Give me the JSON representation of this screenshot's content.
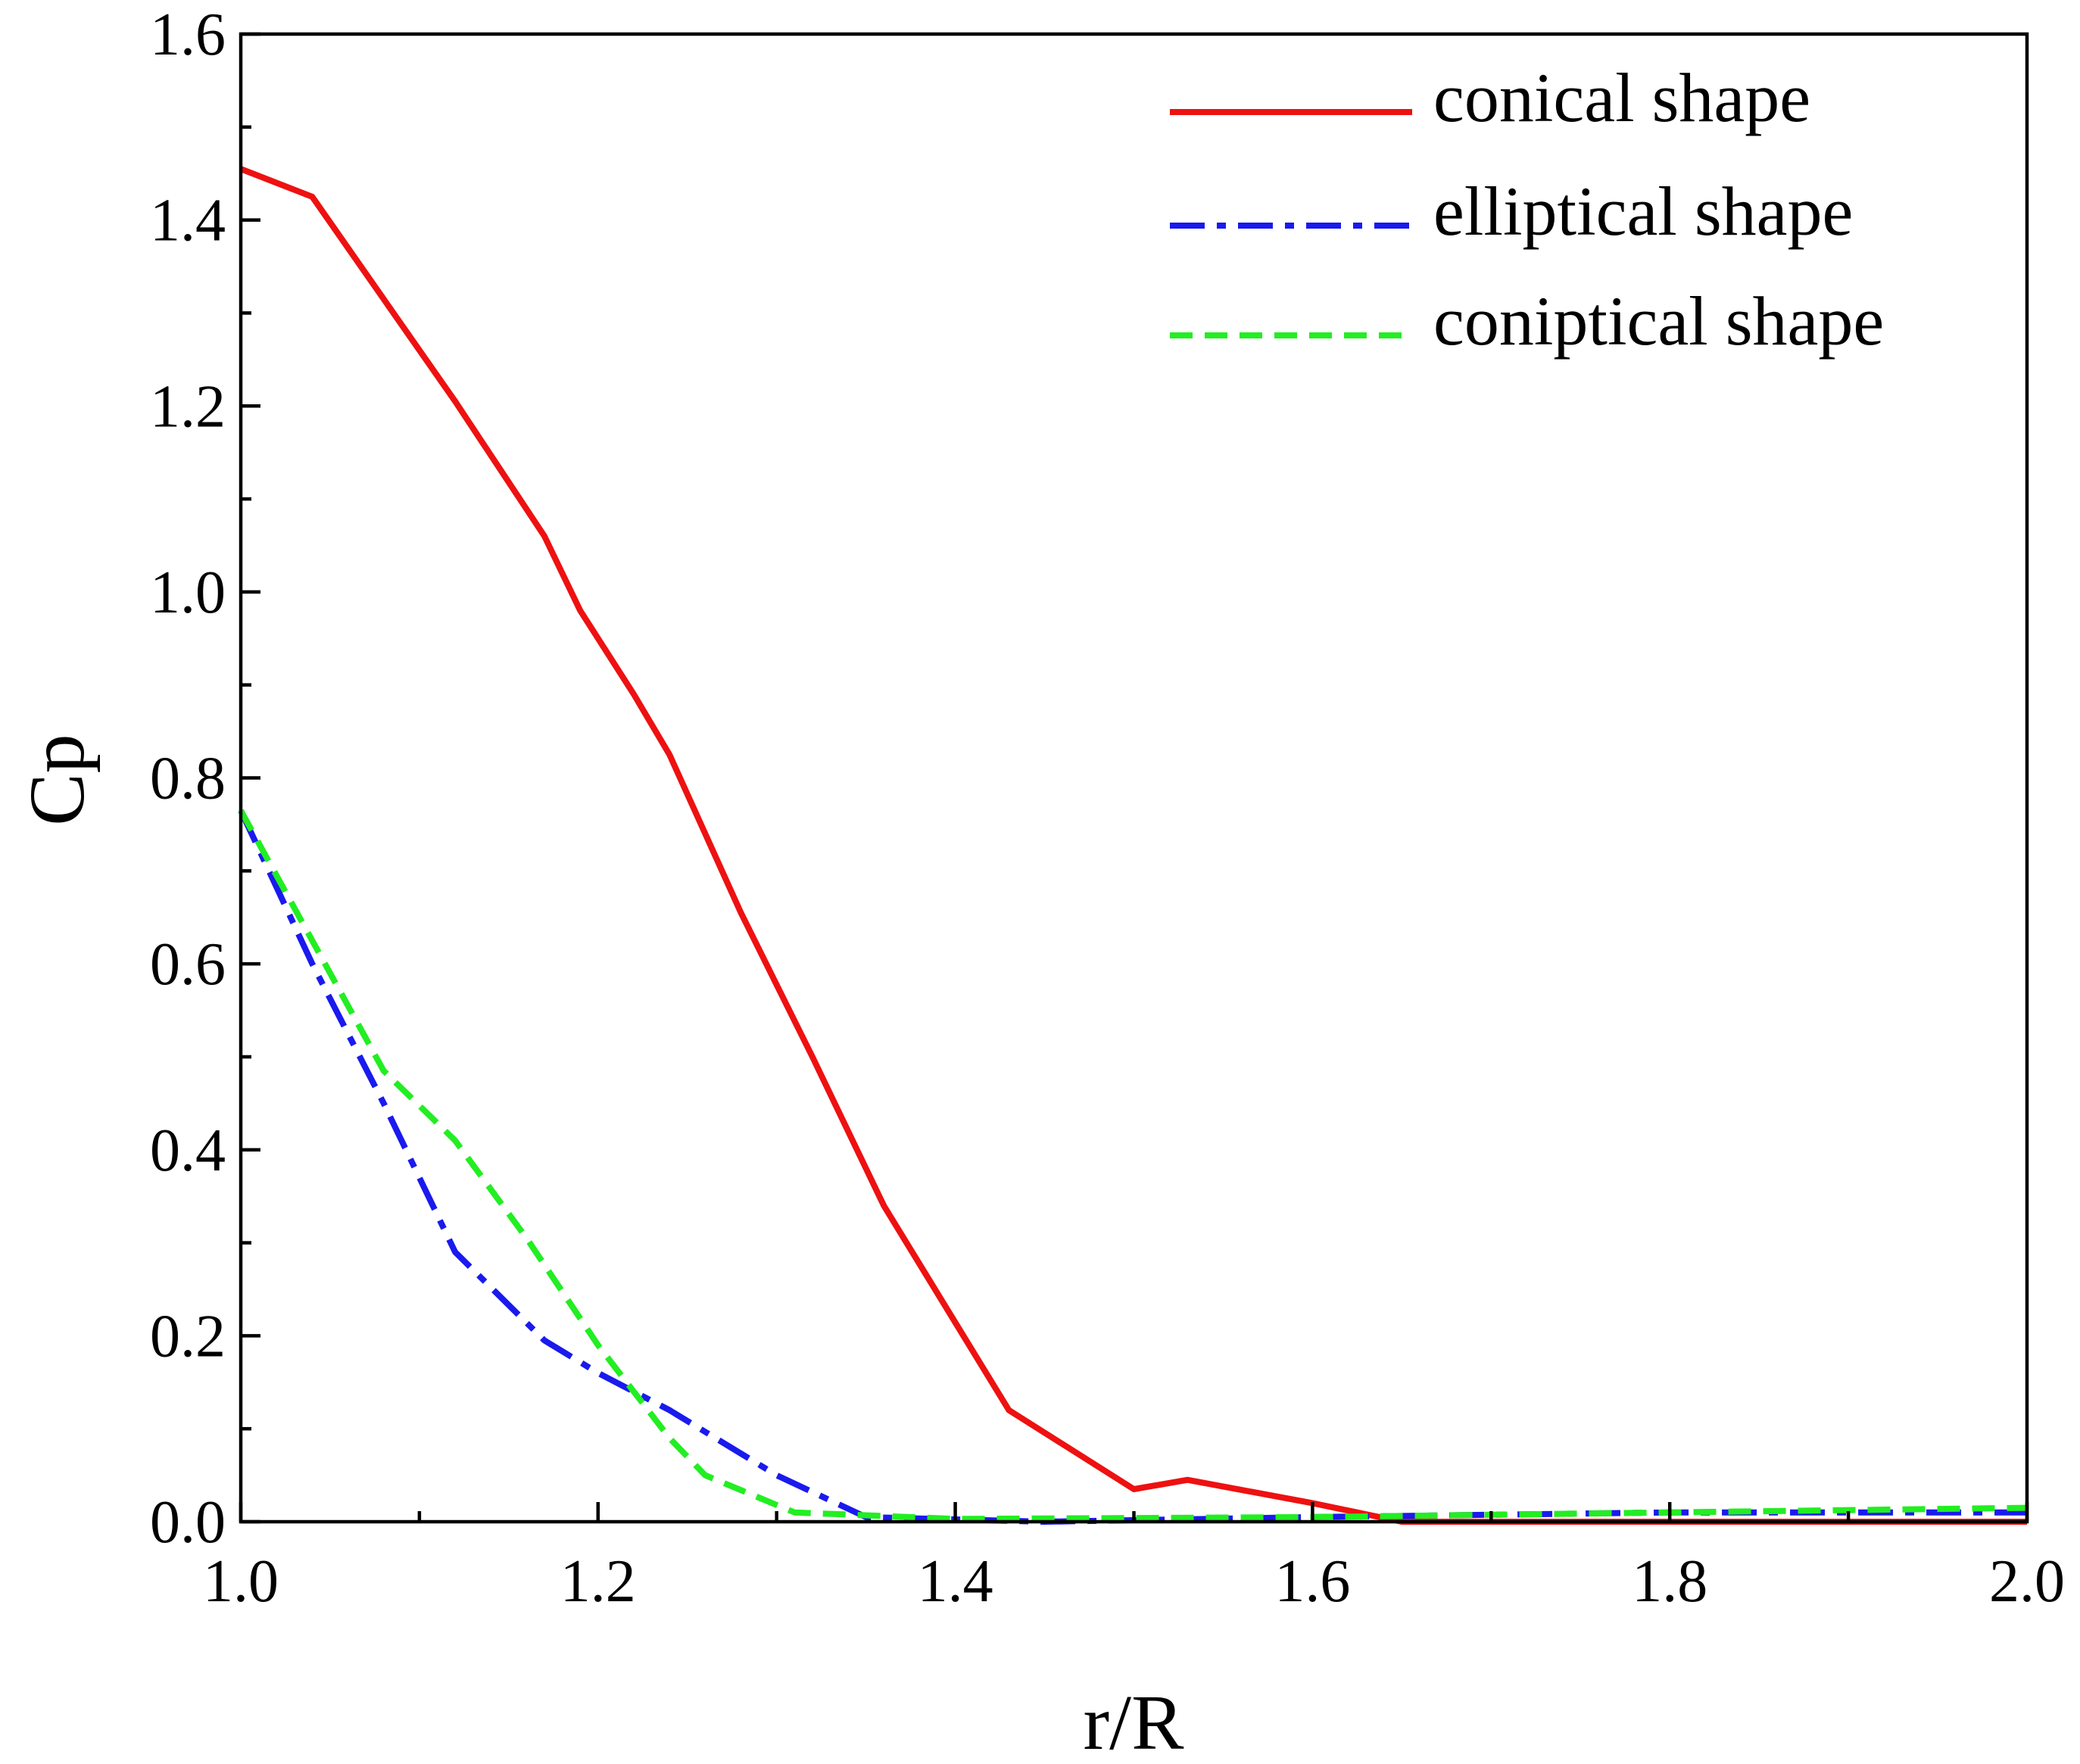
{
  "chart_data": {
    "type": "line",
    "title": "",
    "xlabel": "r/R",
    "ylabel": "Cp",
    "xlim": [
      1.0,
      2.0
    ],
    "ylim": [
      0.0,
      1.6
    ],
    "x_ticks": [
      "1.0",
      "1.2",
      "1.4",
      "1.6",
      "1.8",
      "2.0"
    ],
    "y_ticks": [
      "0.0",
      "0.2",
      "0.4",
      "0.6",
      "0.8",
      "1.0",
      "1.2",
      "1.4",
      "1.6"
    ],
    "grid": false,
    "legend_position": "top-right",
    "series": [
      {
        "name": "conical shape",
        "color": "#ee1111",
        "style": "solid",
        "x": [
          1.0,
          1.04,
          1.08,
          1.12,
          1.17,
          1.19,
          1.22,
          1.24,
          1.28,
          1.32,
          1.36,
          1.43,
          1.5,
          1.53,
          1.6,
          1.65,
          1.8,
          2.0
        ],
        "y": [
          1.455,
          1.425,
          1.315,
          1.205,
          1.06,
          0.98,
          0.89,
          0.825,
          0.655,
          0.5,
          0.34,
          0.12,
          0.035,
          0.045,
          0.02,
          0.0,
          0.0,
          0.0
        ]
      },
      {
        "name": "elliptical shape",
        "color": "#1a1aee",
        "style": "dash-dot",
        "x": [
          1.0,
          1.04,
          1.08,
          1.12,
          1.17,
          1.2,
          1.24,
          1.3,
          1.35,
          1.45,
          1.6,
          1.8,
          2.0
        ],
        "y": [
          0.765,
          0.6,
          0.45,
          0.29,
          0.195,
          0.16,
          0.12,
          0.05,
          0.005,
          0.0,
          0.005,
          0.01,
          0.01
        ]
      },
      {
        "name": "coniptical shape",
        "color": "#22ee22",
        "style": "dashed",
        "x": [
          1.0,
          1.04,
          1.08,
          1.12,
          1.16,
          1.2,
          1.24,
          1.26,
          1.31,
          1.4,
          1.6,
          1.8,
          2.0
        ],
        "y": [
          0.765,
          0.625,
          0.485,
          0.41,
          0.305,
          0.19,
          0.09,
          0.05,
          0.01,
          0.003,
          0.005,
          0.01,
          0.015
        ]
      }
    ]
  }
}
